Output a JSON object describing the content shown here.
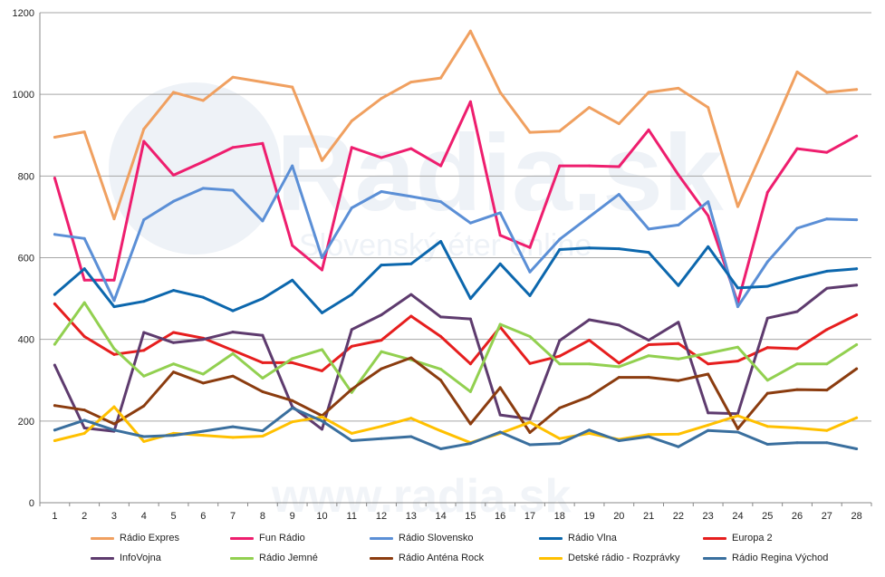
{
  "chart_data": {
    "type": "line",
    "x": [
      1,
      2,
      3,
      4,
      5,
      6,
      7,
      8,
      9,
      10,
      11,
      12,
      13,
      14,
      15,
      16,
      17,
      18,
      19,
      20,
      21,
      22,
      23,
      24,
      25,
      26,
      27,
      28
    ],
    "ylim": [
      0,
      1200
    ],
    "yticks": [
      0,
      200,
      400,
      600,
      800,
      1000,
      1200
    ],
    "grid": true,
    "legend_position": "bottom",
    "watermark": [
      "Radia.sk",
      "Slovenský éter online",
      "www.radia.sk"
    ],
    "series": [
      {
        "name": "Rádio Expres",
        "color": "#f0a060",
        "values": [
          895,
          908,
          695,
          915,
          1005,
          985,
          1042,
          1030,
          1018,
          838,
          935,
          990,
          1030,
          1040,
          1155,
          1005,
          907,
          910,
          968,
          928,
          1005,
          1015,
          968,
          725,
          888,
          1055,
          1005,
          1012
        ]
      },
      {
        "name": "Fun Rádio",
        "color": "#ee1e6e",
        "values": [
          795,
          545,
          545,
          885,
          802,
          835,
          870,
          880,
          630,
          570,
          870,
          845,
          867,
          825,
          982,
          655,
          625,
          825,
          825,
          823,
          913,
          803,
          703,
          490,
          760,
          867,
          858,
          898
        ]
      },
      {
        "name": "Rádio Slovensko",
        "color": "#5b8fd6",
        "values": [
          657,
          647,
          495,
          693,
          738,
          770,
          765,
          690,
          825,
          600,
          722,
          762,
          750,
          737,
          685,
          710,
          565,
          645,
          700,
          755,
          670,
          680,
          737,
          480,
          590,
          672,
          695,
          693
        ]
      },
      {
        "name": "Rádio Vlna",
        "color": "#0c67ad",
        "values": [
          510,
          573,
          480,
          493,
          520,
          503,
          470,
          500,
          545,
          465,
          510,
          582,
          585,
          640,
          500,
          585,
          507,
          620,
          624,
          622,
          613,
          532,
          627,
          526,
          530,
          550,
          567,
          573
        ]
      },
      {
        "name": "Europa 2",
        "color": "#e61e1e",
        "values": [
          487,
          407,
          363,
          373,
          417,
          403,
          373,
          343,
          343,
          323,
          383,
          398,
          457,
          407,
          340,
          430,
          341,
          359,
          398,
          342,
          387,
          390,
          340,
          347,
          380,
          377,
          424,
          460
        ]
      },
      {
        "name": "InfoVojna",
        "color": "#5e3b6e",
        "values": [
          337,
          183,
          175,
          417,
          392,
          400,
          418,
          410,
          235,
          180,
          424,
          460,
          510,
          455,
          450,
          215,
          205,
          397,
          448,
          435,
          398,
          442,
          220,
          218,
          452,
          468,
          525,
          533
        ]
      },
      {
        "name": "Rádio Jemné",
        "color": "#92d050",
        "values": [
          388,
          490,
          377,
          310,
          340,
          315,
          365,
          305,
          353,
          375,
          270,
          370,
          350,
          327,
          272,
          437,
          407,
          340,
          340,
          333,
          360,
          352,
          366,
          381,
          300,
          340,
          340,
          387
        ]
      },
      {
        "name": "Rádio Anténa Rock",
        "color": "#8b3c0f",
        "values": [
          238,
          227,
          193,
          237,
          320,
          293,
          310,
          272,
          250,
          213,
          278,
          328,
          355,
          300,
          193,
          282,
          172,
          232,
          260,
          307,
          307,
          299,
          315,
          181,
          268,
          277,
          276,
          328
        ]
      },
      {
        "name": "Detské rádio - Rozprávky",
        "color": "#ffc000",
        "values": [
          152,
          170,
          235,
          150,
          170,
          165,
          160,
          163,
          198,
          210,
          170,
          187,
          207,
          176,
          147,
          170,
          197,
          157,
          170,
          155,
          167,
          168,
          190,
          213,
          187,
          183,
          177,
          208
        ]
      },
      {
        "name": "Rádio Regina Východ",
        "color": "#3a6f9e",
        "values": [
          178,
          202,
          178,
          162,
          165,
          175,
          186,
          176,
          232,
          200,
          152,
          157,
          162,
          132,
          145,
          173,
          142,
          145,
          178,
          152,
          162,
          137,
          177,
          173,
          143,
          147,
          147,
          132
        ]
      }
    ]
  }
}
